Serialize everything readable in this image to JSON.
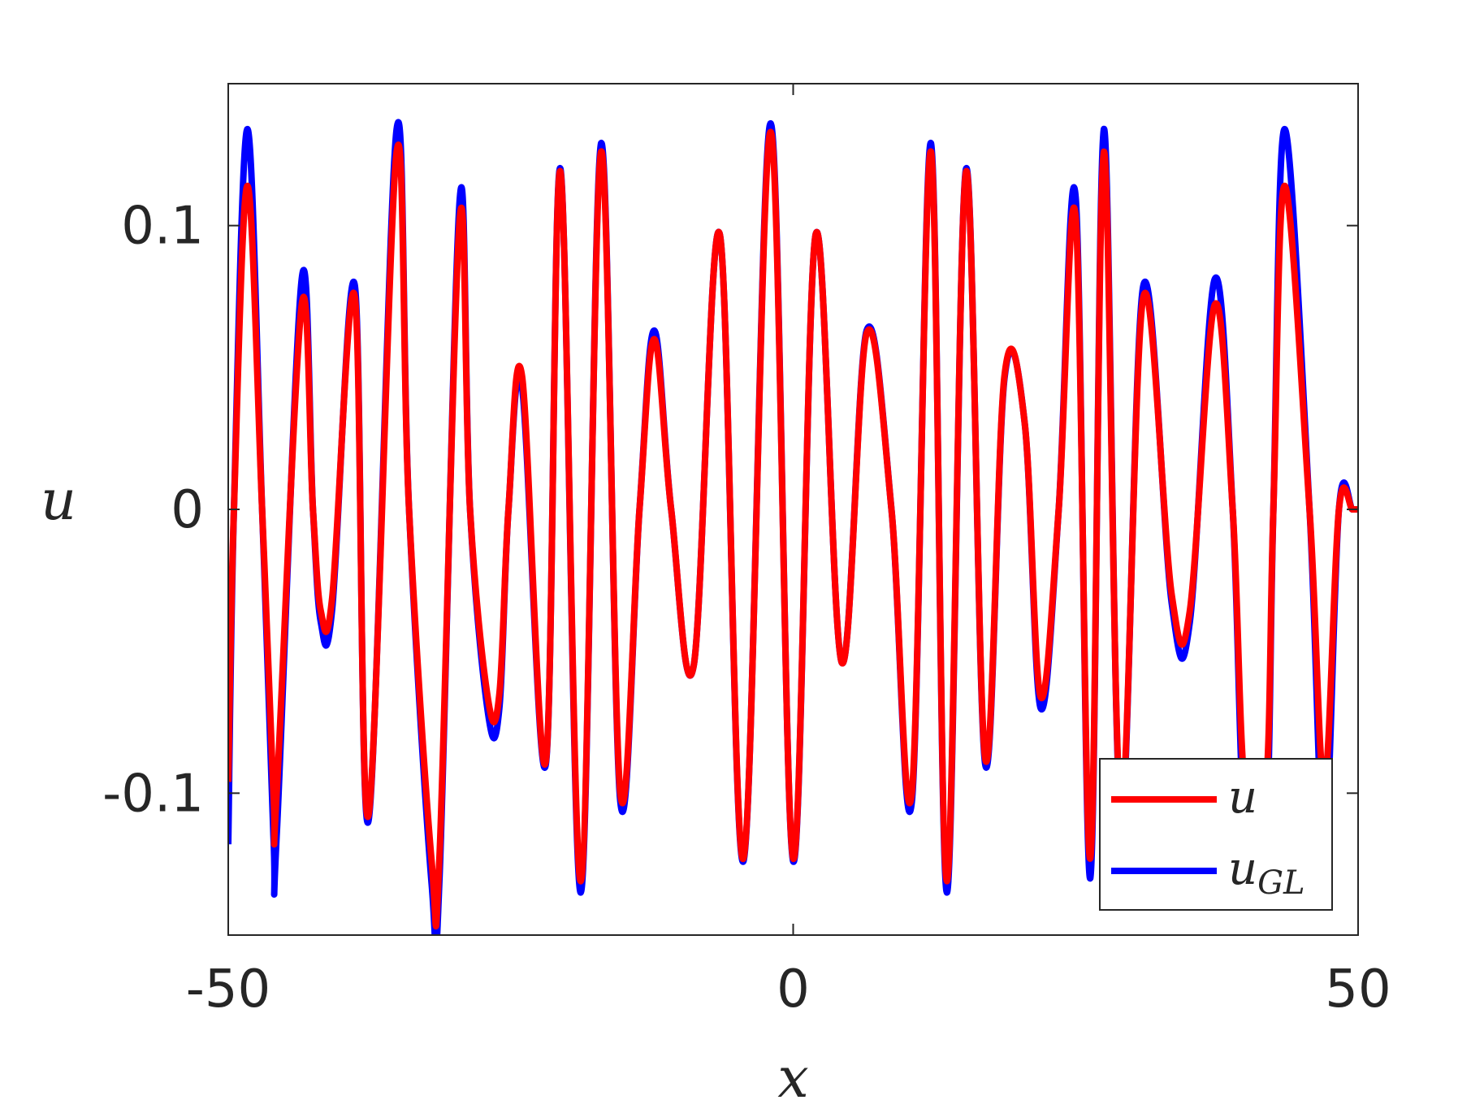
{
  "chart_data": {
    "type": "line",
    "title": "",
    "xlabel": "x",
    "ylabel": "u",
    "xlim": [
      -50,
      50
    ],
    "ylim": [
      -0.15,
      0.15
    ],
    "xticks": [
      -50,
      0,
      50
    ],
    "xtick_labels": [
      "-50",
      "0",
      "50"
    ],
    "yticks": [
      -0.1,
      0,
      0.1
    ],
    "ytick_labels": [
      "-0.1",
      "0",
      "0.1"
    ],
    "grid": false,
    "box": true,
    "legend": {
      "position": "bottom-right",
      "entries": [
        {
          "label": "u",
          "subscript": "",
          "color": "#ff0000"
        },
        {
          "label": "u",
          "subscript": "GL",
          "color": "#0000ff"
        }
      ]
    },
    "series": [
      {
        "name": "u_GL",
        "color": "#0000ff",
        "x": [
          -50,
          -49.5,
          -48.3,
          -47,
          -46,
          -45.7,
          -43.5,
          -42.5,
          -41.8,
          -40.8,
          -38.8,
          -37.6,
          -35.1,
          -34,
          -32,
          -31.3,
          -29.5,
          -28.6,
          -27,
          -26,
          -25.2,
          -24,
          -21.9,
          -20.6,
          -18.8,
          -17,
          -15.3,
          -13.6,
          -12.3,
          -10.8,
          -8.8,
          -6.5,
          -4.4,
          -2,
          0,
          2,
          4.3,
          6.5,
          8.7,
          10.5,
          12.2,
          13.6,
          15.3,
          17,
          18.7,
          20.5,
          21.9,
          23.5,
          25,
          26.3,
          27.5,
          29,
          31,
          33.5,
          35.1,
          37.3,
          38.9,
          40,
          41.8,
          42.5,
          43.5,
          45.7,
          47,
          48.3,
          49.5,
          50
        ],
        "y": [
          -0.118,
          0.0,
          0.134,
          0.0,
          -0.115,
          -0.114,
          0.081,
          0.0,
          -0.04,
          -0.035,
          0.079,
          -0.11,
          0.134,
          0.0,
          -0.132,
          -0.13,
          0.11,
          0.0,
          -0.072,
          -0.07,
          0.0,
          0.043,
          -0.09,
          0.12,
          -0.135,
          0.129,
          -0.103,
          0.0,
          0.063,
          0.0,
          -0.055,
          0.097,
          -0.124,
          0.136,
          -0.124,
          0.097,
          -0.054,
          0.063,
          0.0,
          -0.103,
          0.129,
          -0.135,
          0.12,
          -0.09,
          0.046,
          0.03,
          -0.07,
          0.0,
          0.11,
          -0.13,
          0.134,
          -0.108,
          0.079,
          -0.033,
          -0.04,
          0.081,
          0.0,
          -0.114,
          -0.115,
          0.0,
          0.134,
          0.0,
          -0.118,
          0.0,
          0.0,
          0.0
        ]
      },
      {
        "name": "u",
        "color": "#ff0000",
        "x": [
          -50,
          -49.5,
          -48.3,
          -47,
          -46,
          -45.7,
          -43.5,
          -42.5,
          -41.8,
          -40.8,
          -38.8,
          -37.6,
          -35.1,
          -34,
          -32,
          -31.3,
          -29.5,
          -28.6,
          -27,
          -26,
          -25.2,
          -24,
          -21.9,
          -20.6,
          -18.8,
          -17,
          -15.3,
          -13.6,
          -12.3,
          -10.8,
          -8.8,
          -6.5,
          -4.4,
          -2,
          0,
          2,
          4.3,
          6.5,
          8.7,
          10.5,
          12.2,
          13.6,
          15.3,
          17,
          18.7,
          20.5,
          21.9,
          23.5,
          25,
          26.3,
          27.5,
          29,
          31,
          33.5,
          35.1,
          37.3,
          38.9,
          40,
          41.8,
          42.5,
          43.5,
          45.7,
          47,
          48.3,
          49.5,
          50
        ],
        "y": [
          -0.096,
          0.0,
          0.114,
          0.0,
          -0.1,
          -0.099,
          0.072,
          0.0,
          -0.036,
          -0.031,
          0.075,
          -0.108,
          0.126,
          0.0,
          -0.124,
          -0.122,
          0.103,
          0.0,
          -0.067,
          -0.065,
          0.0,
          0.047,
          -0.089,
          0.119,
          -0.131,
          0.126,
          -0.1,
          0.0,
          0.06,
          0.0,
          -0.055,
          0.097,
          -0.123,
          0.133,
          -0.123,
          0.097,
          -0.054,
          0.062,
          0.0,
          -0.1,
          0.126,
          -0.131,
          0.119,
          -0.088,
          0.047,
          0.03,
          -0.066,
          0.0,
          0.103,
          -0.123,
          0.126,
          -0.105,
          0.075,
          -0.03,
          -0.036,
          0.072,
          0.0,
          -0.099,
          -0.1,
          0.0,
          0.114,
          0.0,
          -0.096,
          0.0,
          0.0,
          0.0
        ]
      }
    ]
  }
}
